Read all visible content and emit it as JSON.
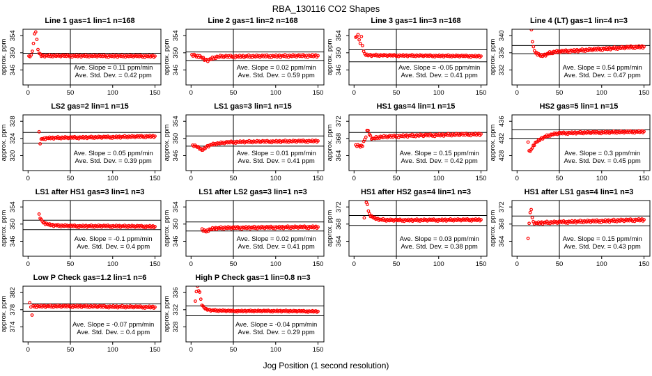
{
  "chart_data": {
    "type": "scatter",
    "title": "RBA_130116  CO2 Shapes",
    "xlabel": "Jog Position (1 second resolution)",
    "ylabel": "approx. ppm",
    "x_ticks": [
      0,
      50,
      100,
      150
    ],
    "xlim": [
      -6,
      157
    ],
    "point_color": "#FF0000",
    "n_points": 112,
    "noise_pattern": [
      0.6,
      -0.4,
      0.9,
      0.1,
      -0.7,
      0.3,
      -1.0,
      0.5,
      0.0,
      -0.3,
      0.8,
      -0.6,
      0.2,
      0.7,
      -0.9,
      0.1,
      0.4,
      -0.2,
      1.0,
      -0.5,
      0.3,
      -0.8,
      0.6,
      0.0,
      -0.4,
      0.9,
      -0.1,
      0.5,
      -0.7,
      0.2,
      0.8,
      -0.3
    ],
    "panels": [
      {
        "title": "Line 1 gas=1 lin=1 n=168",
        "yticks": [
          346,
          350,
          354
        ],
        "ylim": [
          342.5,
          355.5
        ],
        "hlines": [
          349.9,
          347.4
        ],
        "vline": 50,
        "noise": 0.25,
        "ann_slope": "Ave. Slope =  0.11  ppm/min",
        "ann_std": "Ave. Std. Dev. =  0.42  ppm",
        "profile": [
          [
            1,
            349.1
          ],
          [
            4,
            349.3
          ],
          [
            5,
            350.3
          ],
          [
            6,
            351.8
          ],
          [
            7,
            353.3
          ],
          [
            8,
            354.8
          ],
          [
            9,
            355.2
          ],
          [
            10,
            353.8
          ],
          [
            11,
            351.8
          ],
          [
            12,
            350.4
          ],
          [
            14,
            349.6
          ],
          [
            16,
            349.3
          ],
          [
            150,
            349.2
          ]
        ]
      },
      {
        "title": "Line 2 gas=1 lin=2 n=168",
        "yticks": [
          346,
          350,
          354
        ],
        "ylim": [
          342.5,
          355.5
        ],
        "hlines": [
          350.2,
          348.2
        ],
        "vline": 50,
        "noise": 0.3,
        "ann_slope": "Ave. Slope =  0.02  ppm/min",
        "ann_std": "Ave. Std. Dev. =  0.59  ppm",
        "profile": [
          [
            1,
            349.4
          ],
          [
            10,
            349.2
          ],
          [
            13,
            348.9
          ],
          [
            16,
            348.4
          ],
          [
            19,
            348.2
          ],
          [
            23,
            348.5
          ],
          [
            28,
            348.9
          ],
          [
            33,
            349.1
          ],
          [
            150,
            349.3
          ]
        ]
      },
      {
        "title": "Line 3 gas=1 lin=3 n=168",
        "yticks": [
          346,
          350,
          354
        ],
        "ylim": [
          342.5,
          355.5
        ],
        "hlines": [
          350.7,
          347.9
        ],
        "vline": 50,
        "noise": 0.22,
        "ann_slope": "Ave. Slope =  -0.05  ppm/min",
        "ann_std": "Ave. Std. Dev. =  0.41  ppm",
        "profile": [
          [
            2,
            353.5
          ],
          [
            3,
            354.2
          ],
          [
            4,
            353.2
          ],
          [
            5,
            354.5
          ],
          [
            6,
            353.0
          ],
          [
            7,
            351.5
          ],
          [
            8,
            354.0
          ],
          [
            9,
            353.6
          ],
          [
            10,
            351.9
          ],
          [
            11,
            350.4
          ],
          [
            12,
            349.9
          ],
          [
            14,
            349.5
          ],
          [
            20,
            349.4
          ],
          [
            150,
            349.2
          ]
        ]
      },
      {
        "title": "Line 4 (LT) gas=1 lin=4 n=3",
        "yticks": [
          332,
          336,
          340
        ],
        "ylim": [
          328.5,
          341.5
        ],
        "hlines": [
          337.7,
          335.8
        ],
        "vline": 50,
        "noise": 0.3,
        "ann_slope": "Ave. Slope =  0.54  ppm/min",
        "ann_std": "Ave. Std. Dev. =  0.47  ppm",
        "profile": [
          [
            17,
            341.2
          ],
          [
            18,
            339.0
          ],
          [
            19,
            337.5
          ],
          [
            20,
            336.6
          ],
          [
            22,
            336.1
          ],
          [
            25,
            335.7
          ],
          [
            28,
            335.3
          ],
          [
            32,
            335.4
          ],
          [
            38,
            335.9
          ],
          [
            45,
            336.2
          ],
          [
            60,
            336.4
          ],
          [
            80,
            336.6
          ],
          [
            100,
            336.9
          ],
          [
            120,
            337.1
          ],
          [
            135,
            337.3
          ],
          [
            150,
            337.4
          ]
        ]
      },
      {
        "title": "LS2 gas=2 lin=1 n=15",
        "yticks": [
          320,
          324,
          328
        ],
        "ylim": [
          316.5,
          329.5
        ],
        "hlines": [
          325.4,
          322.9
        ],
        "vline": 50,
        "noise": 0.25,
        "ann_slope": "Ave. Slope =  0.05  ppm/min",
        "ann_std": "Ave. Std. Dev. =  0.39  ppm",
        "profile": [
          [
            13,
            325.4
          ],
          [
            14,
            322.7
          ],
          [
            15,
            323.4
          ],
          [
            16,
            323.9
          ],
          [
            18,
            324.0
          ],
          [
            25,
            324.1
          ],
          [
            60,
            324.2
          ],
          [
            100,
            324.3
          ],
          [
            150,
            324.5
          ]
        ]
      },
      {
        "title": "LS1 gas=3 lin=1 n=15",
        "yticks": [
          346,
          350,
          354
        ],
        "ylim": [
          342.5,
          355.5
        ],
        "hlines": [
          350.6,
          348.2
        ],
        "vline": 50,
        "noise": 0.25,
        "ann_slope": "Ave. Slope =  0.01  ppm/min",
        "ann_std": "Ave. Std. Dev. =  0.41  ppm",
        "profile": [
          [
            2,
            348.3
          ],
          [
            8,
            348.1
          ],
          [
            11,
            347.6
          ],
          [
            13,
            347.2
          ],
          [
            15,
            347.5
          ],
          [
            18,
            348.0
          ],
          [
            22,
            348.4
          ],
          [
            28,
            348.7
          ],
          [
            35,
            348.9
          ],
          [
            45,
            349.1
          ],
          [
            60,
            349.2
          ],
          [
            150,
            349.4
          ]
        ]
      },
      {
        "title": "HS1 gas=4 lin=1 n=15",
        "yticks": [
          364,
          368,
          372
        ],
        "ylim": [
          360.5,
          373.5
        ],
        "hlines": [
          369.4,
          367.4
        ],
        "vline": 50,
        "noise": 0.3,
        "ann_slope": "Ave. Slope =  0.15  ppm/min",
        "ann_std": "Ave. Std. Dev. =  0.42  ppm",
        "profile": [
          [
            2,
            366.3
          ],
          [
            8,
            366.2
          ],
          [
            10,
            366.5
          ],
          [
            12,
            367.5
          ],
          [
            14,
            368.4
          ],
          [
            15,
            369.3
          ],
          [
            16,
            370.3
          ],
          [
            17,
            369.9
          ],
          [
            18,
            368.9
          ],
          [
            20,
            368.2
          ],
          [
            23,
            367.9
          ],
          [
            26,
            368.1
          ],
          [
            30,
            368.3
          ],
          [
            40,
            368.4
          ],
          [
            60,
            368.6
          ],
          [
            100,
            368.8
          ],
          [
            150,
            369.0
          ]
        ]
      },
      {
        "title": "HS2 gas=5 lin=1 n=15",
        "yticks": [
          428,
          432,
          436
        ],
        "ylim": [
          424.5,
          437.5
        ],
        "hlines": [
          434.0,
          432.0
        ],
        "vline": 50,
        "noise": 0.25,
        "ann_slope": "Ave. Slope =  0.3  ppm/min",
        "ann_std": "Ave. Std. Dev. =  0.45  ppm",
        "profile": [
          [
            13,
            431.0
          ],
          [
            14,
            429.4
          ],
          [
            15,
            428.7
          ],
          [
            16,
            428.9
          ],
          [
            17,
            429.6
          ],
          [
            19,
            430.3
          ],
          [
            22,
            431.0
          ],
          [
            26,
            431.6
          ],
          [
            30,
            432.1
          ],
          [
            36,
            432.6
          ],
          [
            43,
            433.0
          ],
          [
            50,
            433.2
          ],
          [
            70,
            433.3
          ],
          [
            100,
            433.4
          ],
          [
            130,
            433.5
          ],
          [
            150,
            433.6
          ]
        ]
      },
      {
        "title": "LS1 after HS1 gas=3 lin=1 n=3",
        "yticks": [
          346,
          350,
          354
        ],
        "ylim": [
          342.5,
          355.5
        ],
        "hlines": [
          350.9,
          348.7
        ],
        "vline": 50,
        "noise": 0.25,
        "ann_slope": "Ave. Slope =  -0.1  ppm/min",
        "ann_std": "Ave. Std. Dev. =  0.4  ppm",
        "profile": [
          [
            13,
            352.2
          ],
          [
            15,
            351.0
          ],
          [
            17,
            350.6
          ],
          [
            20,
            350.2
          ],
          [
            24,
            349.9
          ],
          [
            30,
            349.7
          ],
          [
            40,
            349.6
          ],
          [
            60,
            349.5
          ],
          [
            100,
            349.5
          ],
          [
            150,
            349.4
          ]
        ]
      },
      {
        "title": "LS1 after LS2 gas=3 lin=1 n=3",
        "yticks": [
          346,
          350,
          354
        ],
        "ylim": [
          342.5,
          355.5
        ],
        "hlines": [
          350.5,
          348.4
        ],
        "vline": 50,
        "noise": 0.28,
        "ann_slope": "Ave. Slope =  0.02  ppm/min",
        "ann_std": "Ave. Std. Dev. =  0.41  ppm",
        "profile": [
          [
            13,
            348.7
          ],
          [
            15,
            348.4
          ],
          [
            17,
            348.3
          ],
          [
            20,
            348.6
          ],
          [
            25,
            348.9
          ],
          [
            30,
            349.0
          ],
          [
            40,
            349.1
          ],
          [
            150,
            349.3
          ]
        ]
      },
      {
        "title": "HS1 after HS2 gas=4 lin=1 n=3",
        "yticks": [
          364,
          368,
          372
        ],
        "ylim": [
          360.5,
          373.5
        ],
        "hlines": [
          370.0,
          367.7
        ],
        "vline": 50,
        "noise": 0.25,
        "ann_slope": "Ave. Slope =  0.03  ppm/min",
        "ann_std": "Ave. Std. Dev. =  0.38  ppm",
        "profile": [
          [
            12,
            369.3
          ],
          [
            13,
            374.3
          ],
          [
            14,
            372.4
          ],
          [
            15,
            373.3
          ],
          [
            16,
            372.3
          ],
          [
            17,
            371.2
          ],
          [
            18,
            370.4
          ],
          [
            20,
            369.9
          ],
          [
            23,
            369.5
          ],
          [
            27,
            369.2
          ],
          [
            32,
            369.0
          ],
          [
            40,
            368.9
          ],
          [
            70,
            368.9
          ],
          [
            150,
            369.0
          ]
        ]
      },
      {
        "title": "HS1 after LS1 gas=4 lin=1 n=3",
        "yticks": [
          364,
          368,
          372
        ],
        "ylim": [
          360.5,
          373.5
        ],
        "hlines": [
          369.9,
          367.6
        ],
        "vline": 50,
        "noise": 0.3,
        "ann_slope": "Ave. Slope =  0.15  ppm/min",
        "ann_std": "Ave. Std. Dev. =  0.43  ppm",
        "profile": [
          [
            13,
            364.5
          ],
          [
            14,
            367.8
          ],
          [
            15,
            369.9
          ],
          [
            16,
            371.0
          ],
          [
            17,
            371.5
          ],
          [
            18,
            369.6
          ],
          [
            19,
            368.5
          ],
          [
            22,
            368.2
          ],
          [
            30,
            368.3
          ],
          [
            60,
            368.5
          ],
          [
            100,
            368.7
          ],
          [
            150,
            369.0
          ]
        ]
      },
      {
        "title": "Low P Check gas=1.2 lin=1 n=6",
        "yticks": [
          374,
          378,
          382
        ],
        "ylim": [
          370.5,
          383.5
        ],
        "hlines": [
          379.4,
          377.6
        ],
        "vline": 50,
        "noise": 0.25,
        "ann_slope": "Ave. Slope =  -0.07  ppm/min",
        "ann_std": "Ave. Std. Dev. =  0.4  ppm",
        "profile": [
          [
            2,
            379.5
          ],
          [
            3,
            379.6
          ],
          [
            4,
            377.0
          ],
          [
            5,
            376.3
          ],
          [
            6,
            378.9
          ],
          [
            10,
            378.8
          ],
          [
            60,
            378.8
          ],
          [
            100,
            378.7
          ],
          [
            150,
            378.6
          ]
        ]
      },
      {
        "title": "High P Check gas=1 lin=0.8 n=3",
        "yticks": [
          328,
          332,
          336
        ],
        "ylim": [
          324.5,
          337.5
        ],
        "hlines": [
          332.9,
          330.6
        ],
        "vline": 50,
        "noise": 0.18,
        "ann_slope": "Ave. Slope =  -0.04  ppm/min",
        "ann_std": "Ave. Std. Dev. =  0.29  ppm",
        "profile": [
          [
            5,
            333.9
          ],
          [
            6,
            335.9
          ],
          [
            7,
            337.2
          ],
          [
            8,
            337.4
          ],
          [
            9,
            336.3
          ],
          [
            10,
            336.6
          ],
          [
            11,
            335.0
          ],
          [
            12,
            333.9
          ],
          [
            13,
            333.1
          ],
          [
            15,
            332.5
          ],
          [
            18,
            332.1
          ],
          [
            22,
            331.9
          ],
          [
            30,
            331.8
          ],
          [
            50,
            331.7
          ],
          [
            100,
            331.7
          ],
          [
            150,
            331.6
          ]
        ]
      }
    ]
  }
}
